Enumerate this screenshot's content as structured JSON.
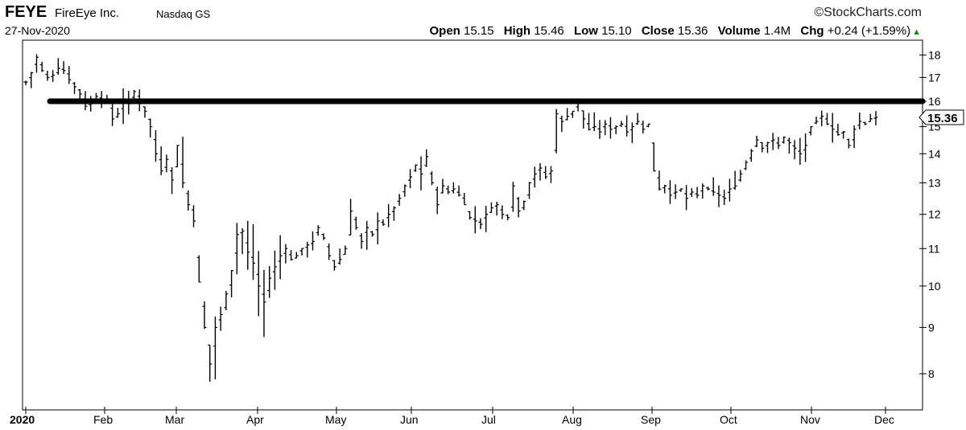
{
  "header": {
    "symbol": "FEYE",
    "company": "FireEye Inc.",
    "exchange": "Nasdaq GS",
    "date": "27-Nov-2020",
    "credit": "©StockCharts.com",
    "quote": {
      "open_label": "Open",
      "open": "15.15",
      "high_label": "High",
      "high": "15.46",
      "low_label": "Low",
      "low": "15.10",
      "close_label": "Close",
      "close": "15.36",
      "volume_label": "Volume",
      "volume": "1.4M",
      "chg_label": "Chg",
      "chg": "+0.24 (+1.59%)"
    }
  },
  "chart_data": {
    "type": "ohlc",
    "y_scale": "log",
    "ylim": [
      7.4,
      18.6
    ],
    "y_ticks": [
      8,
      9,
      10,
      11,
      12,
      13,
      14,
      15,
      16,
      17,
      18
    ],
    "x_tick_labels": [
      "2020",
      "Feb",
      "Mar",
      "Apr",
      "May",
      "Jun",
      "Jul",
      "Aug",
      "Sep",
      "Oct",
      "Nov",
      "Dec"
    ],
    "last_price_label": "15.36",
    "horizontal_line": 16.0,
    "colors": {
      "bars": "#000000",
      "line": "#000000"
    },
    "series_close": [
      16.8,
      17.2,
      17.9,
      17.3,
      17.0,
      17.1,
      17.4,
      17.3,
      16.9,
      16.6,
      16.3,
      15.8,
      15.9,
      16.2,
      16.0,
      16.1,
      15.3,
      15.5,
      16.0,
      15.9,
      16.4,
      15.9,
      15.6,
      15.0,
      14.0,
      13.4,
      13.8,
      13.1,
      14.3,
      13.0,
      12.3,
      11.8,
      10.1,
      9.0,
      8.2,
      9.0,
      9.3,
      9.8,
      10.4,
      11.4,
      11.5,
      10.9,
      10.6,
      10.0,
      9.6,
      10.2,
      10.5,
      10.8,
      11.0,
      10.7,
      10.8,
      11.0,
      11.1,
      11.2,
      11.6,
      11.3,
      10.8,
      10.5,
      10.7,
      11.0,
      12.1,
      11.6,
      11.2,
      11.6,
      11.4,
      11.8,
      11.7,
      12.0,
      12.2,
      12.5,
      12.9,
      13.2,
      13.6,
      13.3,
      13.9,
      13.0,
      12.3,
      12.9,
      12.7,
      12.8,
      12.6,
      12.3,
      11.9,
      11.8,
      11.7,
      12.0,
      12.2,
      12.3,
      12.0,
      11.9,
      12.9,
      12.1,
      12.4,
      13.0,
      13.3,
      13.5,
      13.2,
      13.4,
      15.5,
      15.2,
      15.4,
      15.6,
      15.9,
      15.3,
      14.9,
      15.0,
      14.8,
      15.1,
      14.9,
      15.0,
      15.1,
      14.8,
      15.0,
      15.2,
      14.9,
      15.1,
      13.4,
      12.8,
      12.9,
      12.6,
      12.7,
      12.8,
      12.5,
      12.7,
      12.6,
      12.9,
      12.8,
      12.7,
      12.6,
      12.5,
      12.8,
      12.9,
      13.3,
      13.7,
      14.1,
      14.5,
      14.2,
      14.4,
      14.5,
      14.3,
      14.6,
      14.4,
      14.2,
      14.0,
      14.3,
      15.0,
      15.2,
      15.4,
      15.1,
      14.9,
      14.7,
      14.8,
      14.3,
      14.9,
      15.2,
      15.1,
      15.3,
      15.36
    ]
  }
}
